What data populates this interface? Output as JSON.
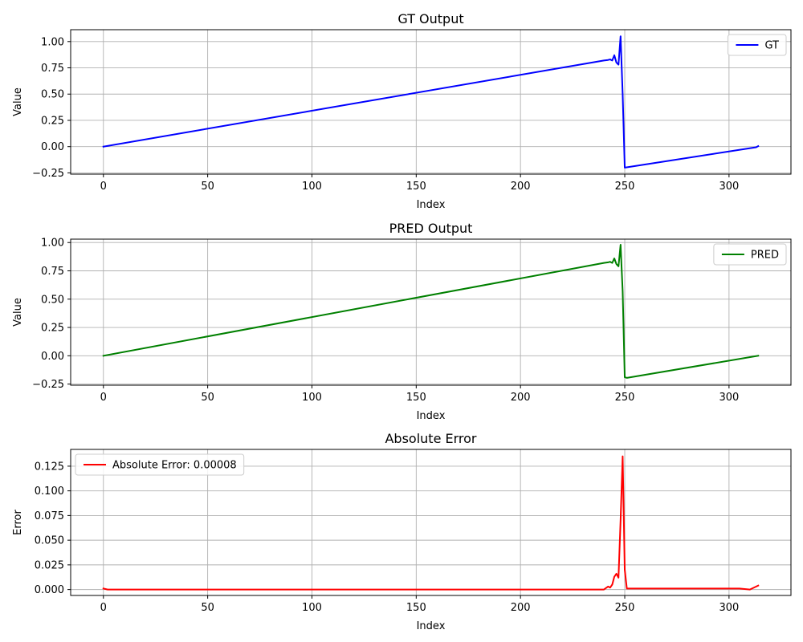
{
  "chart_data": [
    {
      "type": "line",
      "title": "GT Output",
      "xlabel": "Index",
      "ylabel": "Value",
      "xlim": [
        -15.7,
        329.7
      ],
      "ylim": [
        -0.262,
        1.113
      ],
      "xticks": [
        0,
        50,
        100,
        150,
        200,
        250,
        300
      ],
      "yticks": [
        -0.25,
        0,
        0.25,
        0.5,
        0.75,
        1.0
      ],
      "ytick_labels": [
        "−0.25",
        "0.00",
        "0.25",
        "0.50",
        "0.75",
        "1.00"
      ],
      "grid": true,
      "legend_position": "upper right",
      "series": [
        {
          "name": "GT",
          "color": "#0000ff",
          "points": [
            [
              0,
              0.0
            ],
            [
              240,
              0.82
            ],
            [
              242,
              0.825
            ],
            [
              243,
              0.83
            ],
            [
              244,
              0.82
            ],
            [
              245,
              0.87
            ],
            [
              246,
              0.8
            ],
            [
              247,
              0.78
            ],
            [
              248,
              1.05
            ],
            [
              249,
              0.5
            ],
            [
              250,
              -0.2
            ],
            [
              313,
              -0.006
            ],
            [
              314,
              0.005
            ]
          ]
        }
      ]
    },
    {
      "type": "line",
      "title": "PRED Output",
      "xlabel": "Index",
      "ylabel": "Value",
      "xlim": [
        -15.7,
        329.7
      ],
      "ylim": [
        -0.26,
        1.03
      ],
      "xticks": [
        0,
        50,
        100,
        150,
        200,
        250,
        300
      ],
      "yticks": [
        -0.25,
        0,
        0.25,
        0.5,
        0.75,
        1.0
      ],
      "ytick_labels": [
        "−0.25",
        "0.00",
        "0.25",
        "0.50",
        "0.75",
        "1.00"
      ],
      "grid": true,
      "legend_position": "upper right",
      "series": [
        {
          "name": "PRED",
          "color": "#008000",
          "points": [
            [
              0,
              0.0
            ],
            [
              240,
              0.82
            ],
            [
              242,
              0.825
            ],
            [
              243,
              0.83
            ],
            [
              244,
              0.82
            ],
            [
              245,
              0.86
            ],
            [
              246,
              0.81
            ],
            [
              247,
              0.79
            ],
            [
              248,
              0.98
            ],
            [
              249,
              0.57
            ],
            [
              250,
              -0.19
            ],
            [
              251,
              -0.195
            ],
            [
              314,
              0.0
            ]
          ]
        }
      ]
    },
    {
      "type": "line",
      "title": "Absolute Error",
      "xlabel": "Index",
      "ylabel": "Error",
      "xlim": [
        -15.7,
        329.7
      ],
      "ylim": [
        -0.006,
        0.142
      ],
      "xticks": [
        0,
        50,
        100,
        150,
        200,
        250,
        300
      ],
      "yticks": [
        0,
        0.025,
        0.05,
        0.075,
        0.1,
        0.125
      ],
      "ytick_labels": [
        "0.000",
        "0.025",
        "0.050",
        "0.075",
        "0.100",
        "0.125"
      ],
      "grid": true,
      "legend_position": "upper left",
      "series": [
        {
          "name": "Absolute Error: 0.00008",
          "color": "#ff0000",
          "points": [
            [
              0,
              0.001
            ],
            [
              2,
              0.0
            ],
            [
              240,
              0.0
            ],
            [
              242,
              0.003
            ],
            [
              243,
              0.002
            ],
            [
              244,
              0.005
            ],
            [
              245,
              0.013
            ],
            [
              246,
              0.016
            ],
            [
              247,
              0.012
            ],
            [
              248,
              0.07
            ],
            [
              249,
              0.135
            ],
            [
              250,
              0.02
            ],
            [
              251,
              0.001
            ],
            [
              305,
              0.001
            ],
            [
              310,
              0.0
            ],
            [
              314,
              0.004
            ]
          ]
        }
      ]
    }
  ]
}
